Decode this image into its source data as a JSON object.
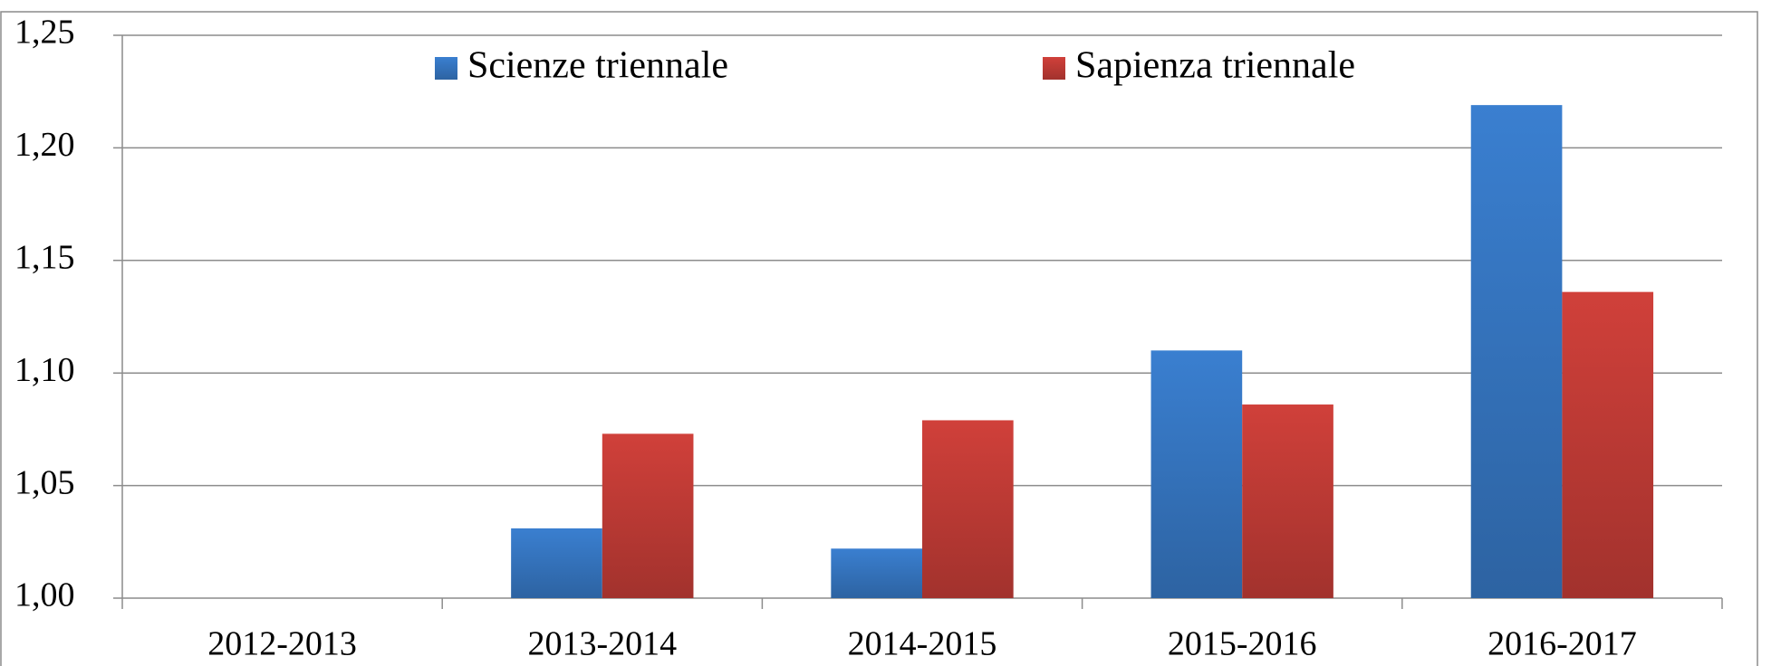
{
  "chart_data": {
    "type": "bar",
    "categories": [
      "2012-2013",
      "2013-2014",
      "2014-2015",
      "2015-2016",
      "2016-2017"
    ],
    "series": [
      {
        "name": "Scienze triennale",
        "color": "#3a7fd0",
        "values": [
          1.0,
          1.031,
          1.022,
          1.11,
          1.219
        ]
      },
      {
        "name": "Sapienza triennale",
        "color": "#d0403a",
        "values": [
          1.0,
          1.073,
          1.079,
          1.086,
          1.136
        ]
      }
    ],
    "ylim": [
      1.0,
      1.25
    ],
    "yticks": [
      {
        "value": 1.0,
        "label": "1,00"
      },
      {
        "value": 1.05,
        "label": "1,05"
      },
      {
        "value": 1.1,
        "label": "1,10"
      },
      {
        "value": 1.15,
        "label": "1,15"
      },
      {
        "value": 1.2,
        "label": "1,20"
      },
      {
        "value": 1.25,
        "label": "1,25"
      }
    ],
    "grid": true,
    "legend": "top"
  }
}
